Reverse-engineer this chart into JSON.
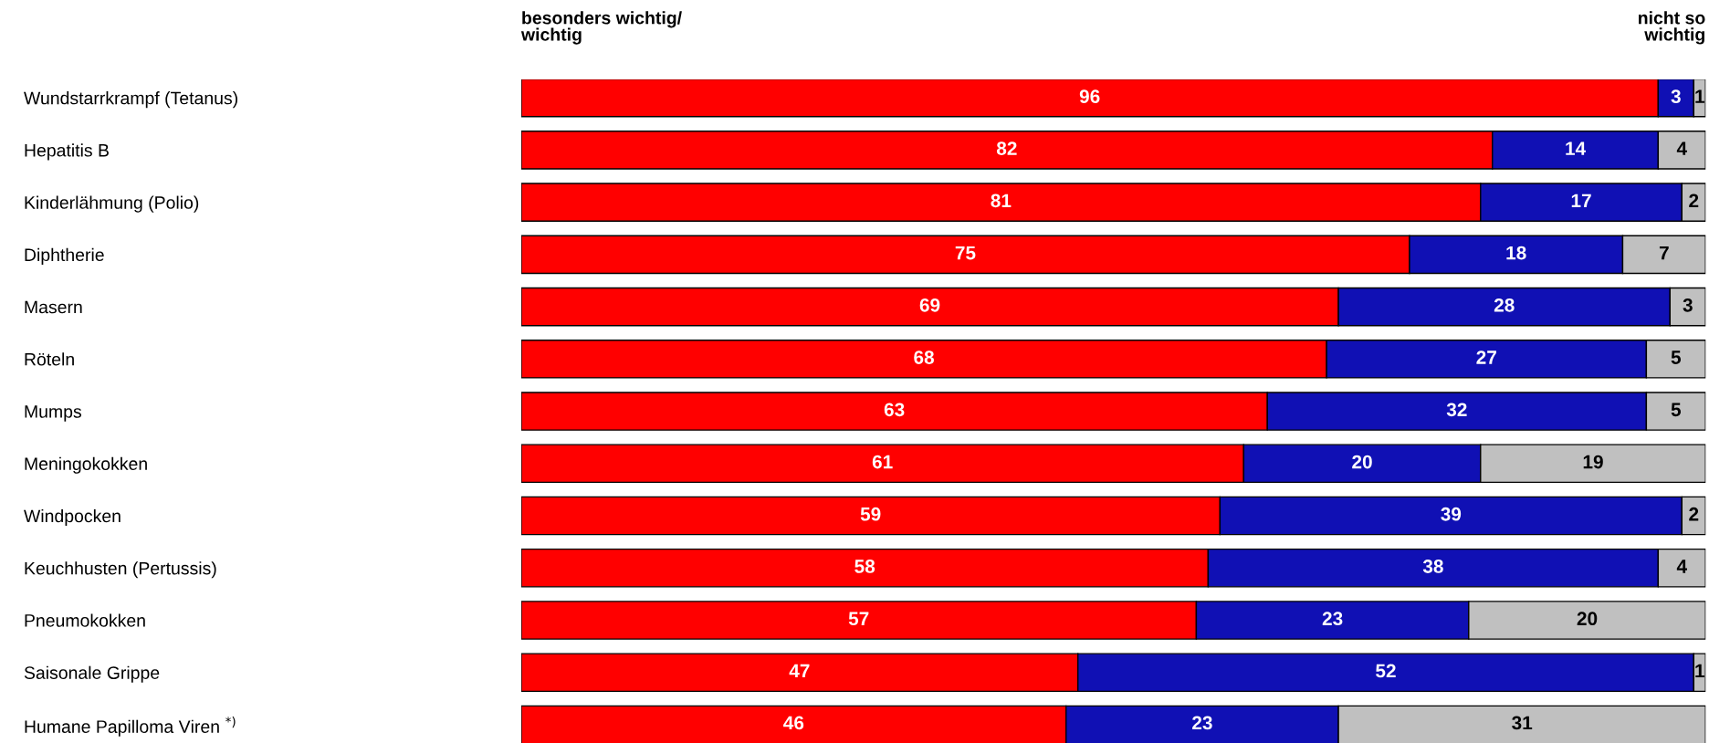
{
  "chart_data": {
    "type": "bar",
    "orientation": "horizontal",
    "stacked": true,
    "data_labels": true,
    "tick_labels": "y",
    "xlim": [
      0,
      100
    ],
    "categories": [
      "Wundstarrkrampf (Tetanus)",
      "Hepatitis B",
      "Kinderlähmung (Polio)",
      "Diphtherie",
      "Masern",
      "Röteln",
      "Mumps",
      "Meningokokken",
      "Windpocken",
      "Keuchhusten (Pertussis)",
      "Pneumokokken",
      "Saisonale Grippe",
      "Humane Papilloma Viren $^{*)}$"
    ],
    "series": [
      {
        "color": "#ff0000",
        "values": [
          96,
          82,
          81,
          75,
          69,
          68,
          63,
          61,
          59,
          58,
          57,
          47,
          46
        ]
      },
      {
        "color": "#1010b4",
        "values": [
          3,
          14,
          17,
          18,
          28,
          27,
          32,
          20,
          39,
          38,
          23,
          52,
          23
        ]
      },
      {
        "color": "#c0c0c0",
        "values": [
          1,
          4,
          2,
          7,
          3,
          5,
          5,
          19,
          2,
          4,
          20,
          1,
          31
        ]
      }
    ],
    "annotations": [
      "besonders wichtig/\nwichtig",
      "nicht so\nwichtig"
    ]
  }
}
